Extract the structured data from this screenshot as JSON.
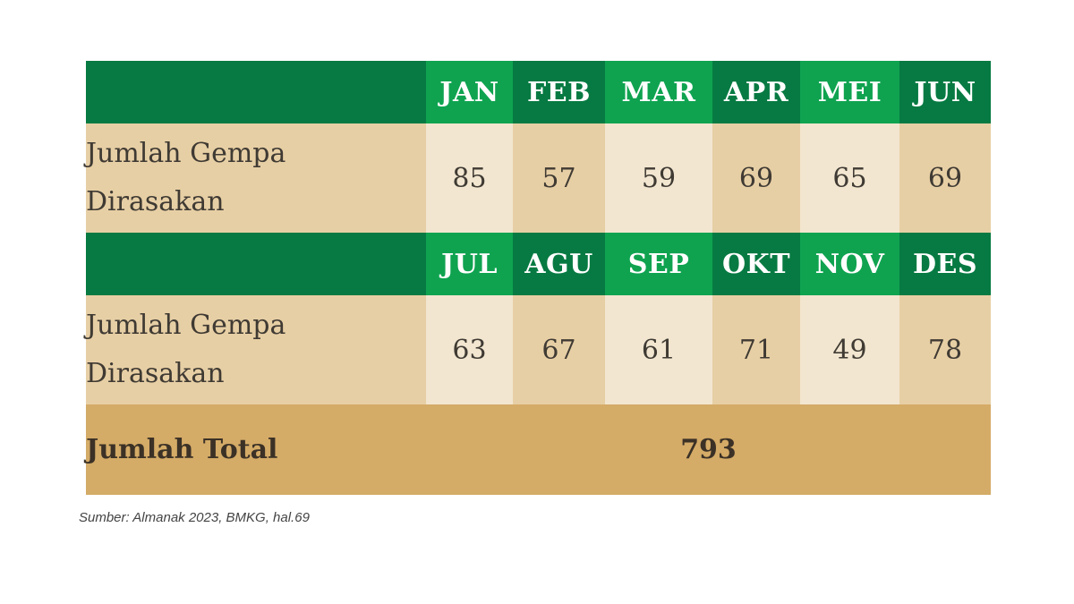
{
  "chart_data": {
    "type": "table",
    "row_label": "Jumlah Gempa Dirasakan",
    "row_label_lines": [
      "Jumlah Gempa",
      "Dirasakan"
    ],
    "categories": [
      "JAN",
      "FEB",
      "MAR",
      "APR",
      "MEI",
      "JUN",
      "JUL",
      "AGU",
      "SEP",
      "OKT",
      "NOV",
      "DES"
    ],
    "values": [
      85,
      57,
      59,
      69,
      65,
      69,
      63,
      67,
      61,
      71,
      49,
      78
    ],
    "total_label": "Jumlah Total",
    "total_value": 793
  },
  "source": "Sumber: Almanak 2023, BMKG, hal.69",
  "colors": {
    "header_dark": "#067a42",
    "header_light": "#0fa350",
    "cell_light": "#f2e6d0",
    "cell_tan": "#e7cfa5",
    "total_bg": "#d4ab67"
  }
}
